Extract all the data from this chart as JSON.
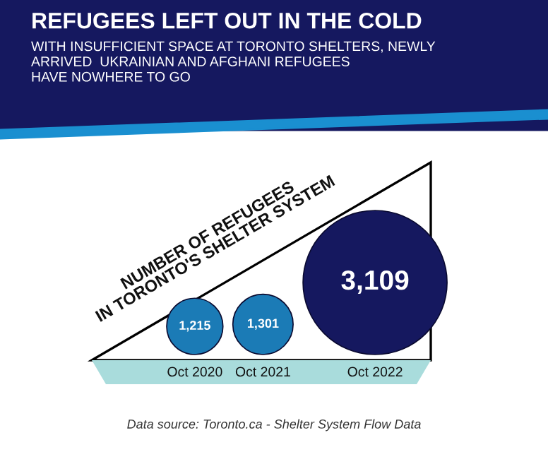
{
  "chart_data": {
    "type": "other",
    "title": "REFUGEES LEFT OUT IN THE COLD",
    "subtitle": "WITH INSUFFICIENT SPACE AT TORONTO SHELTERS, NEWLY\nARRIVED  UKRAINIAN AND AFGHANI REFUGEES\nHAVE NOWHERE TO GO",
    "ylabel": "NUMBER OF REFUGEES\nIN TORONTO'S SHELTER SYSTEM",
    "categories": [
      "Oct 2020",
      "Oct 2021",
      "Oct 2022"
    ],
    "values": [
      1215,
      1301,
      3109
    ],
    "colors": [
      "#1b7bb6",
      "#1b7bb6",
      "#15185f"
    ],
    "value_labels": [
      "1,215",
      "1,301",
      "3,109"
    ],
    "annotations": [
      "Data source: Toronto.ca - Shelter System Flow Data"
    ]
  }
}
